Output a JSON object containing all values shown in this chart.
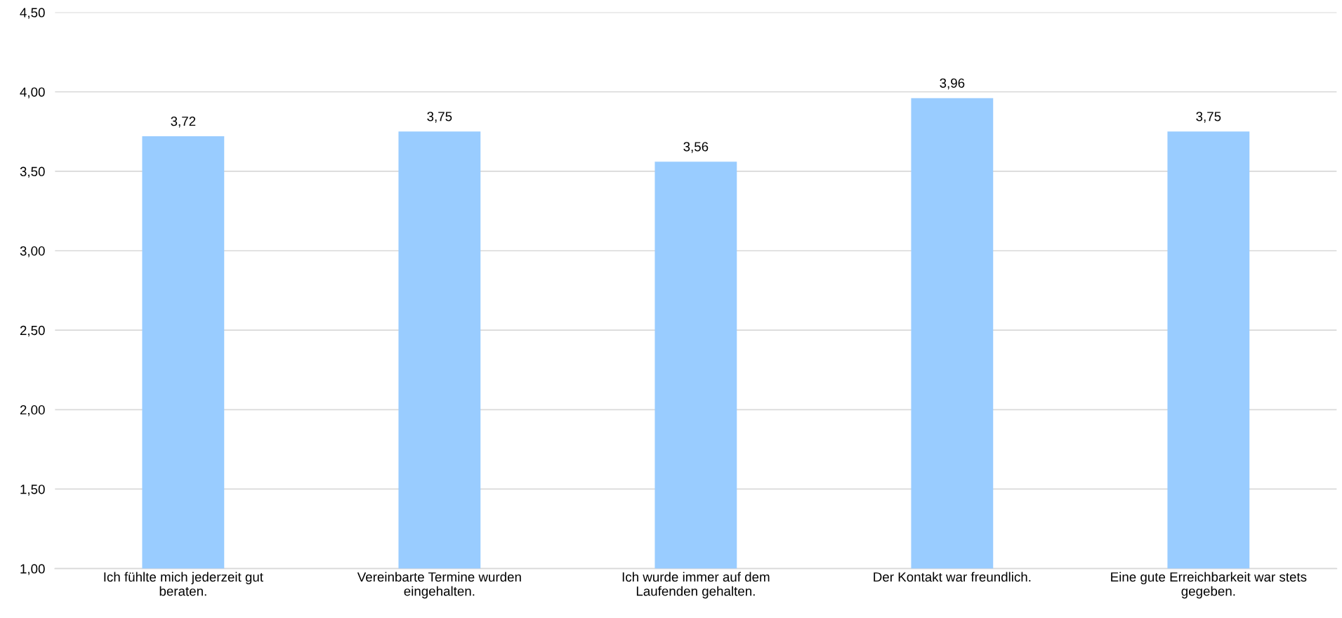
{
  "chart_data": {
    "type": "bar",
    "categories": [
      "Ich fühlte mich jederzeit gut\nberaten.",
      "Vereinbarte Termine wurden\neingehalten.",
      "Ich wurde immer auf dem\nLaufenden gehalten.",
      "Der Kontakt war freundlich.",
      "Eine gute Erreichbarkeit war stets\ngegeben."
    ],
    "values": [
      3.72,
      3.75,
      3.56,
      3.96,
      3.75
    ],
    "value_labels": [
      "3,72",
      "3,75",
      "3,56",
      "3,96",
      "3,75"
    ],
    "color": "#99ccff",
    "ylim": [
      1.0,
      4.5
    ],
    "yticks": [
      {
        "value": 1.0,
        "label": "1,00"
      },
      {
        "value": 1.5,
        "label": "1,50"
      },
      {
        "value": 2.0,
        "label": "2,00"
      },
      {
        "value": 2.5,
        "label": "2,50"
      },
      {
        "value": 3.0,
        "label": "3,00"
      },
      {
        "value": 3.5,
        "label": "3,50"
      },
      {
        "value": 4.0,
        "label": "4,00"
      },
      {
        "value": 4.5,
        "label": "4,50"
      }
    ],
    "grid": "y",
    "legend": false
  }
}
